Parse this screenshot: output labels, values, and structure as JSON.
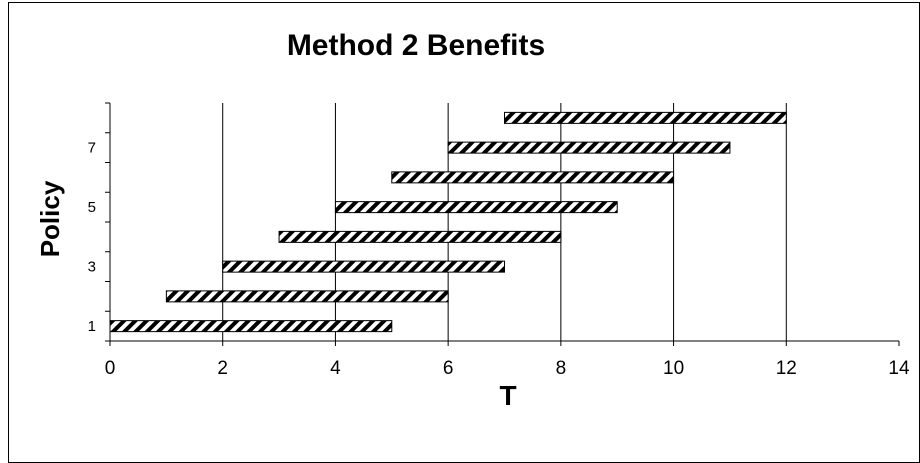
{
  "chart_data": {
    "type": "bar",
    "orientation": "horizontal-range",
    "title": "Method 2 Benefits",
    "xlabel": "T",
    "ylabel": "Policy",
    "xlim": [
      0,
      14
    ],
    "x_ticks": [
      "0",
      "2",
      "4",
      "6",
      "8",
      "10",
      "12",
      "14"
    ],
    "y_ticks": [
      {
        "policy": 1,
        "label": "1"
      },
      {
        "policy": 3,
        "label": "3"
      },
      {
        "policy": 5,
        "label": "5"
      },
      {
        "policy": 7,
        "label": "7"
      }
    ],
    "policies": [
      1,
      2,
      3,
      4,
      5,
      6,
      7,
      8
    ],
    "bars": [
      {
        "policy": 1,
        "start": 0,
        "end": 5
      },
      {
        "policy": 2,
        "start": 1,
        "end": 6
      },
      {
        "policy": 3,
        "start": 2,
        "end": 7
      },
      {
        "policy": 4,
        "start": 3,
        "end": 8
      },
      {
        "policy": 5,
        "start": 4,
        "end": 9
      },
      {
        "policy": 6,
        "start": 5,
        "end": 10
      },
      {
        "policy": 7,
        "start": 6,
        "end": 11
      },
      {
        "policy": 8,
        "start": 7,
        "end": 12
      }
    ],
    "grid": "vertical",
    "legend": "none",
    "bar_pattern": "diagonal-hatch",
    "colors": {
      "bar_fill": "#000000",
      "bar_background": "#ffffff",
      "gridline": "#000000"
    }
  }
}
